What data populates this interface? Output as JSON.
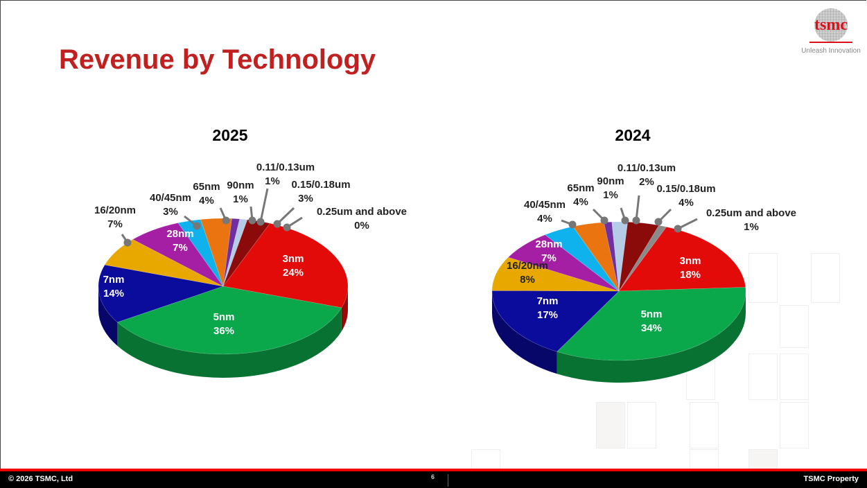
{
  "slide": {
    "title": "Revenue by Technology",
    "logo_text": "tsmc",
    "logo_tagline": "Unleash Innovation",
    "footer_copyright": "© 2026 TSMC, Ltd",
    "page_number": "6",
    "footer_right": "TSMC Property"
  },
  "colors": {
    "title": "#c0201f",
    "3nm": "#e30a0a",
    "5nm": "#0aa84a",
    "7nm": "#0b0b9c",
    "16/20nm": "#e8a800",
    "28nm": "#a51fa5",
    "40/45nm": "#10b2ee",
    "65nm": "#ea7410",
    "90nm": "#7030a0",
    "0.11/0.13um": "#b4cce6",
    "0.15/0.18um": "#8b0a0a",
    "0.25um and above": "#8a8a8a"
  },
  "chart_data": [
    {
      "type": "pie",
      "title": "2025",
      "categories": [
        "3nm",
        "5nm",
        "7nm",
        "16/20nm",
        "28nm",
        "40/45nm",
        "65nm",
        "90nm",
        "0.11/0.13um",
        "0.15/0.18um",
        "0.25um and above"
      ],
      "values": [
        24,
        36,
        14,
        7,
        7,
        3,
        4,
        1,
        1,
        3,
        0
      ],
      "labels": [
        "24%",
        "36%",
        "14%",
        "7%",
        "7%",
        "3%",
        "4%",
        "1%",
        "1%",
        "3%",
        "0%"
      ],
      "unit": "%"
    },
    {
      "type": "pie",
      "title": "2024",
      "categories": [
        "3nm",
        "5nm",
        "7nm",
        "16/20nm",
        "28nm",
        "40/45nm",
        "65nm",
        "90nm",
        "0.11/0.13um",
        "0.15/0.18um",
        "0.25um and above"
      ],
      "values": [
        18,
        34,
        17,
        8,
        7,
        4,
        4,
        1,
        2,
        4,
        1
      ],
      "labels": [
        "18%",
        "34%",
        "17%",
        "8%",
        "7%",
        "4%",
        "4%",
        "1%",
        "2%",
        "4%",
        "1%"
      ],
      "unit": "%"
    }
  ]
}
